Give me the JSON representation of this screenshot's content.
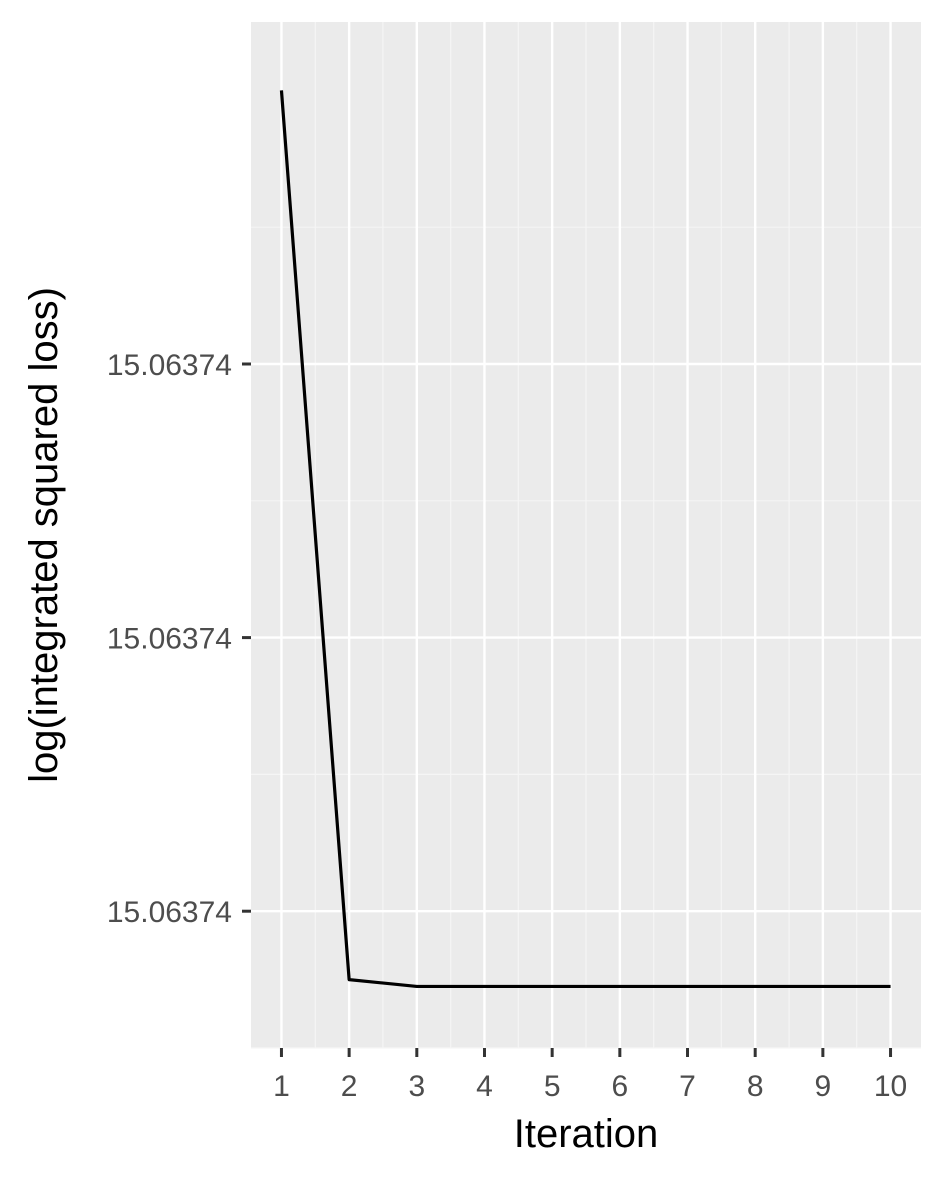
{
  "chart_data": {
    "type": "line",
    "title": "",
    "xlabel": "Iteration",
    "ylabel": "log(integrated squared loss)",
    "x": [
      1,
      2,
      3,
      4,
      5,
      6,
      7,
      8,
      9,
      10
    ],
    "series": [
      {
        "values": [
          15.063744,
          15.0637375,
          15.06373745,
          15.06373745,
          15.06373745,
          15.06373745,
          15.06373745,
          15.06373745,
          15.06373745,
          15.06373745
        ]
      }
    ],
    "x_ticks": [
      1,
      2,
      3,
      4,
      5,
      6,
      7,
      8,
      9,
      10
    ],
    "x_tick_labels": [
      "1",
      "2",
      "3",
      "4",
      "5",
      "6",
      "7",
      "8",
      "9",
      "10"
    ],
    "y_ticks": [
      15.063742,
      15.06374,
      15.063738
    ],
    "y_tick_labels": [
      "15.06374",
      "15.06374",
      "15.06374"
    ],
    "xlim": [
      0.55,
      10.45
    ],
    "ylim": [
      15.063737,
      15.0637445
    ],
    "grid": true,
    "colors": {
      "panel_background": "#ebebeb",
      "grid_major": "#ffffff",
      "grid_minor": "#f5f5f5",
      "line": "#000000",
      "tick_text": "#4d4d4d",
      "tick_mark": "#333333"
    }
  }
}
